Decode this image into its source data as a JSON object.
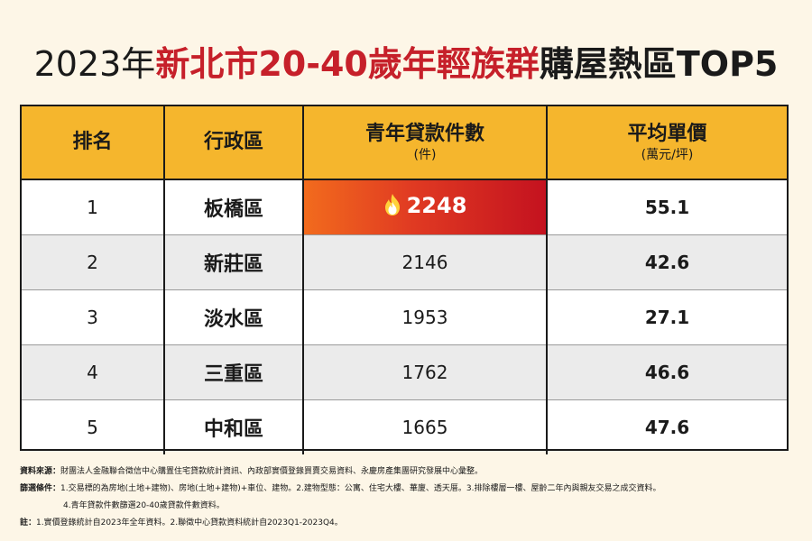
{
  "title": {
    "part1": "2023年",
    "part2": "新北市20-40歲年輕族群",
    "part3": "購屋熱區TOP5"
  },
  "table": {
    "headers": {
      "rank": "排名",
      "district": "行政區",
      "loans": "青年貸款件數",
      "loans_unit": "(件)",
      "price": "平均單價",
      "price_unit": "(萬元/坪)"
    },
    "rows": [
      {
        "rank": "1",
        "district": "板橋區",
        "loans": "2248",
        "price": "55.1"
      },
      {
        "rank": "2",
        "district": "新莊區",
        "loans": "2146",
        "price": "42.6"
      },
      {
        "rank": "3",
        "district": "淡水區",
        "loans": "1953",
        "price": "27.1"
      },
      {
        "rank": "4",
        "district": "三重區",
        "loans": "1762",
        "price": "46.6"
      },
      {
        "rank": "5",
        "district": "中和區",
        "loans": "1665",
        "price": "47.6"
      }
    ]
  },
  "highlight_icon": "fire-icon",
  "colors": {
    "header_bg": "#f5b62d",
    "title_red": "#c6202a",
    "highlight_start": "#f26b1d",
    "highlight_end": "#c4121f",
    "alt_row": "#ebebeb",
    "page_bg": "#fdf6e7"
  },
  "notes": {
    "source_label": "資料來源：",
    "source_text": "財團法人金融聯合徵信中心購置住宅貸款統計資訊、內政部實價登錄買賣交易資料、永慶房產集團研究發展中心彙整。",
    "filter_label": "篩選條件：",
    "filter_text": "1.交易標的為房地(土地+建物)、房地(土地+建物)+車位、建物。2.建物型態：公寓、住宅大樓、華廈、透天厝。3.排除樓層一樓、屋齡二年內與親友交易之成交資料。",
    "filter_text2": "4.青年貸款件數篩選20-40歲貸款件數資料。",
    "note_label": "註：",
    "note_text": "1.實價登錄統計自2023年全年資料。2.聯徵中心貸款資料統計自2023Q1-2023Q4。"
  }
}
